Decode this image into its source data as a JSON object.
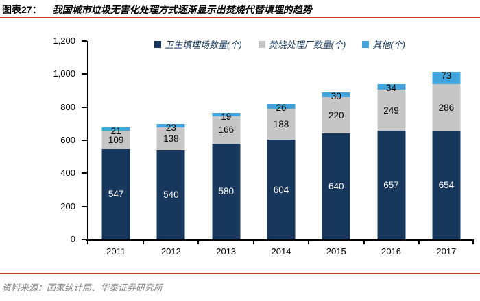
{
  "header": {
    "figure_label": "图表27：",
    "title": "我国城市垃圾无害化处理方式逐渐显示出焚烧代替填埋的趋势"
  },
  "footer": {
    "source": "资料来源：国家统计局、华泰证券研究所"
  },
  "colors": {
    "rule_red": "#CC3A28",
    "legend_text": "#17375D",
    "axis": "#000000",
    "source_text": "#808080"
  },
  "chart_data": {
    "type": "bar",
    "stacked": true,
    "title": "我国城市垃圾无害化处理方式逐渐显示出焚烧代替填埋的趋势",
    "categories": [
      "2011",
      "2012",
      "2013",
      "2014",
      "2015",
      "2016",
      "2017"
    ],
    "series": [
      {
        "name": "卫生填埋场数量(个)",
        "color": "#17375D",
        "label_color": "#FFFFFF",
        "values": [
          547,
          540,
          580,
          604,
          640,
          657,
          654
        ]
      },
      {
        "name": "焚烧处理厂数量(个)",
        "color": "#C6C6C6",
        "label_color": "#000000",
        "values": [
          109,
          138,
          166,
          188,
          220,
          249,
          286
        ]
      },
      {
        "name": "其他(个)",
        "color": "#41A4DC",
        "label_color": "#000000",
        "values": [
          21,
          23,
          19,
          26,
          30,
          34,
          73
        ]
      }
    ],
    "xlabel": "",
    "ylabel": "",
    "ylim": [
      0,
      1200
    ],
    "yticks": [
      {
        "v": 0,
        "label": "0"
      },
      {
        "v": 200,
        "label": "200"
      },
      {
        "v": 400,
        "label": "400"
      },
      {
        "v": 600,
        "label": "600"
      },
      {
        "v": 800,
        "label": "800"
      },
      {
        "v": 1000,
        "label": "1,000"
      },
      {
        "v": 1200,
        "label": "1,200"
      }
    ],
    "grid": false,
    "data_labels": true,
    "legend_position": "top"
  }
}
